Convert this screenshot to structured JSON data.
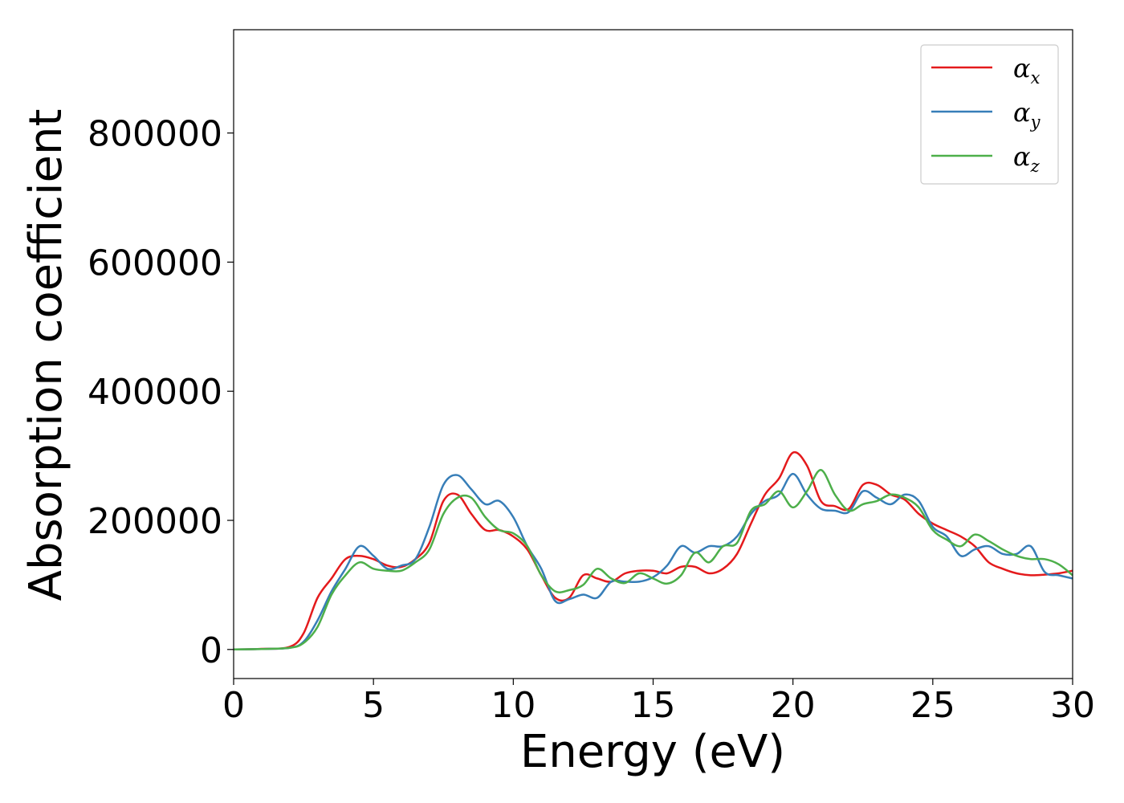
{
  "chart_data": {
    "type": "line",
    "xlabel": "Energy (eV)",
    "ylabel": "Absorption coefficient",
    "xlim": [
      0,
      30
    ],
    "ylim": [
      -45000,
      960000
    ],
    "xticks": [
      0,
      5,
      10,
      15,
      20,
      25,
      30
    ],
    "yticks": [
      0,
      200000,
      400000,
      600000,
      800000
    ],
    "grid": false,
    "legend_position": "top-right",
    "series": [
      {
        "name": "αx",
        "label_main": "α",
        "label_sub": "x",
        "color": "#e41a1c",
        "x": [
          0,
          1,
          2,
          2.5,
          3,
          3.5,
          4,
          4.5,
          5,
          5.5,
          6,
          6.5,
          7,
          7.5,
          8,
          8.5,
          9,
          9.5,
          10,
          10.5,
          11,
          11.5,
          12,
          12.5,
          13,
          13.5,
          14,
          14.5,
          15,
          15.5,
          16,
          16.5,
          17,
          17.5,
          18,
          18.5,
          19,
          19.5,
          20,
          20.5,
          21,
          21.5,
          22,
          22.5,
          23,
          23.5,
          24,
          24.5,
          25,
          25.5,
          26,
          26.5,
          27,
          27.5,
          28,
          28.5,
          29,
          29.5,
          30
        ],
        "y": [
          0,
          1000,
          4000,
          25000,
          80000,
          110000,
          140000,
          145000,
          140000,
          130000,
          128000,
          140000,
          165000,
          230000,
          240000,
          210000,
          185000,
          185000,
          175000,
          155000,
          115000,
          80000,
          80000,
          115000,
          110000,
          105000,
          118000,
          122000,
          122000,
          118000,
          128000,
          128000,
          118000,
          125000,
          148000,
          195000,
          240000,
          265000,
          305000,
          285000,
          230000,
          222000,
          218000,
          255000,
          255000,
          240000,
          232000,
          210000,
          195000,
          185000,
          175000,
          160000,
          135000,
          125000,
          118000,
          115000,
          116000,
          118000,
          122000
        ]
      },
      {
        "name": "αy",
        "label_main": "α",
        "label_sub": "y",
        "color": "#377eb8",
        "x": [
          0,
          1,
          2,
          2.5,
          3,
          3.5,
          4,
          4.5,
          5,
          5.5,
          6,
          6.5,
          7,
          7.5,
          8,
          8.5,
          9,
          9.5,
          10,
          10.5,
          11,
          11.5,
          12,
          12.5,
          13,
          13.5,
          14,
          14.5,
          15,
          15.5,
          16,
          16.5,
          17,
          17.5,
          18,
          18.5,
          19,
          19.5,
          20,
          20.5,
          21,
          21.5,
          22,
          22.5,
          23,
          23.5,
          24,
          24.5,
          25,
          25.5,
          26,
          26.5,
          27,
          27.5,
          28,
          28.5,
          29,
          29.5,
          30
        ],
        "y": [
          0,
          800,
          2500,
          12000,
          45000,
          90000,
          125000,
          160000,
          145000,
          125000,
          130000,
          140000,
          190000,
          255000,
          270000,
          248000,
          225000,
          230000,
          205000,
          160000,
          125000,
          75000,
          78000,
          85000,
          80000,
          105000,
          105000,
          105000,
          112000,
          130000,
          160000,
          150000,
          160000,
          160000,
          175000,
          210000,
          230000,
          240000,
          272000,
          240000,
          218000,
          215000,
          213000,
          245000,
          235000,
          225000,
          240000,
          230000,
          190000,
          175000,
          145000,
          155000,
          160000,
          148000,
          148000,
          160000,
          120000,
          115000,
          110000
        ]
      },
      {
        "name": "αz",
        "label_main": "α",
        "label_sub": "z",
        "color": "#4daf4a",
        "x": [
          0,
          1,
          2,
          2.5,
          3,
          3.5,
          4,
          4.5,
          5,
          5.5,
          6,
          6.5,
          7,
          7.5,
          8,
          8.5,
          9,
          9.5,
          10,
          10.5,
          11,
          11.5,
          12,
          12.5,
          13,
          13.5,
          14,
          14.5,
          15,
          15.5,
          16,
          16.5,
          17,
          17.5,
          18,
          18.5,
          19,
          19.5,
          20,
          20.5,
          21,
          21.5,
          22,
          22.5,
          23,
          23.5,
          24,
          24.5,
          25,
          25.5,
          26,
          26.5,
          27,
          27.5,
          28,
          28.5,
          29,
          29.5,
          30
        ],
        "y": [
          0,
          800,
          2500,
          10000,
          35000,
          85000,
          115000,
          135000,
          125000,
          122000,
          122000,
          135000,
          155000,
          210000,
          235000,
          235000,
          205000,
          185000,
          180000,
          160000,
          115000,
          90000,
          92000,
          100000,
          125000,
          110000,
          103000,
          118000,
          110000,
          102000,
          115000,
          150000,
          135000,
          160000,
          165000,
          215000,
          225000,
          245000,
          220000,
          245000,
          278000,
          240000,
          215000,
          225000,
          230000,
          240000,
          235000,
          220000,
          185000,
          170000,
          160000,
          178000,
          168000,
          155000,
          145000,
          140000,
          140000,
          132000,
          115000
        ]
      }
    ]
  }
}
